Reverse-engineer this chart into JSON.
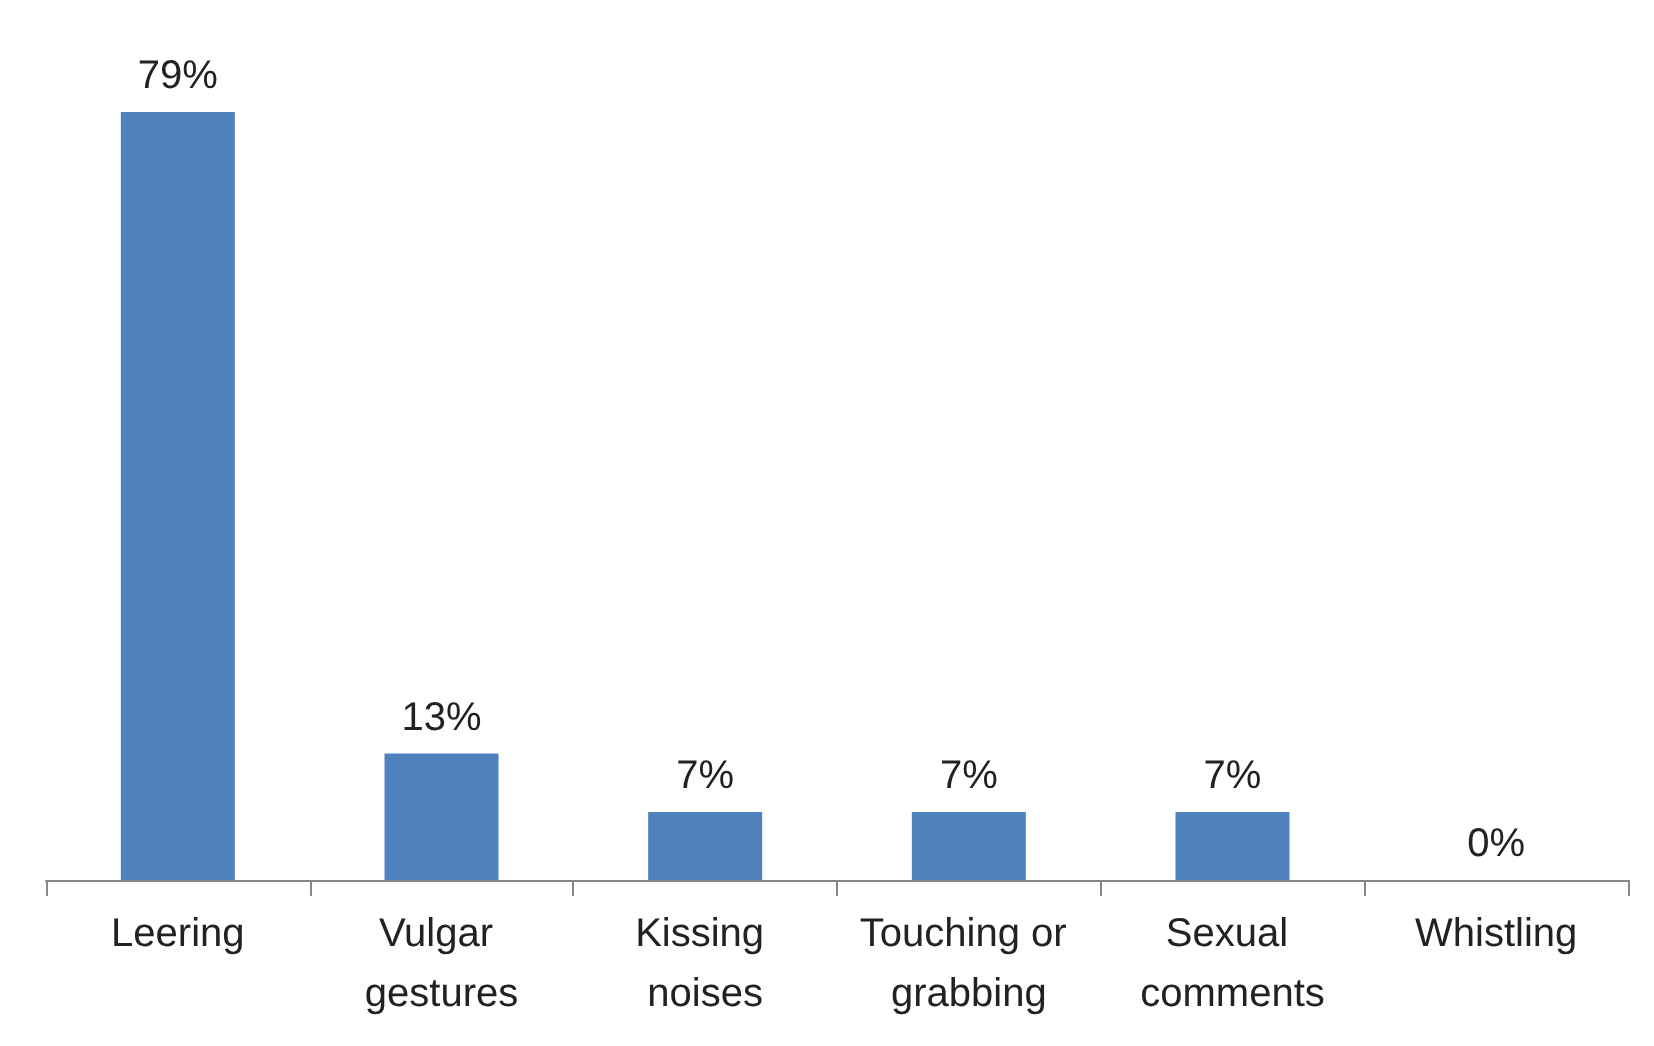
{
  "chart_data": {
    "type": "bar",
    "categories": [
      "Leering",
      "Vulgar gestures",
      "Kissing noises",
      "Touching or grabbing",
      "Sexual comments",
      "Whistling"
    ],
    "values": [
      79,
      13,
      7,
      7,
      7,
      0
    ],
    "value_labels": [
      "79%",
      "13%",
      "7%",
      "7%",
      "7%",
      "0%"
    ],
    "color": "#4f81bd"
  }
}
